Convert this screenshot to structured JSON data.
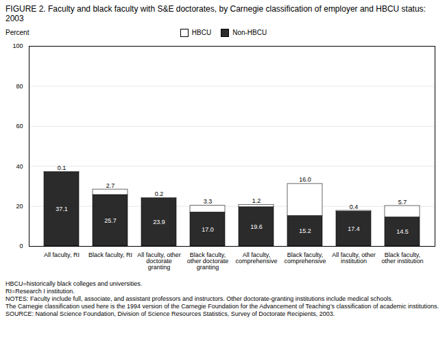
{
  "chart_data": {
    "type": "bar",
    "title": "FIGURE 2.  Faculty and black faculty with S&E doctorates, by Carnegie classification of employer and HBCU status: 2003",
    "ylabel": "Percent",
    "categories": [
      "All faculty, RI",
      "Black faculty, RI",
      "All faculty, other\ndoctorate\ngranting",
      "Black faculty,\nother doctorate\ngranting",
      "All faculty,\ncomprehensive",
      "Black faculty,\ncomprehensive",
      "All faculty, other\ninstitution",
      "Black faculty,\nother institution"
    ],
    "series": [
      {
        "name": "Non-HBCU",
        "color": "#2b2b2b",
        "values": [
          37.1,
          25.7,
          23.9,
          17.0,
          19.6,
          15.2,
          17.4,
          14.5
        ],
        "value_labels": [
          "37.1",
          "25.7",
          "23.9",
          "17.0",
          "19.6",
          "15.2",
          "17.4",
          "14.5"
        ]
      },
      {
        "name": "HBCU",
        "color": "#ffffff",
        "values": [
          0.1,
          2.7,
          0.2,
          3.3,
          1.2,
          16.0,
          0.4,
          5.7
        ],
        "value_labels": [
          "0.1",
          "2.7",
          "0.2",
          "3.3",
          "1.2",
          "16.0",
          "0.4",
          "5.7"
        ]
      }
    ],
    "stacked": true,
    "data_labels": true,
    "ylim": [
      0,
      100
    ],
    "yticks": [
      0,
      20,
      40,
      60,
      80,
      100
    ],
    "grid": true,
    "legend": "upper center",
    "annotations": [
      "HBCU=historically black colleges and universities.",
      "RI=Research I institution.",
      "NOTES:  Faculty include full, associate, and assistant professors and instructors. Other doctorate-granting institutions include medical schools.",
      "The Carnegie classification used here is the 1994 version of the Carnegie Foundation for the Advancement of Teaching’s classification of academic institutions.",
      "SOURCE: National Science Foundation, Division of Science Resources Statistics, Survey of Doctorate Recipients, 2003."
    ]
  }
}
